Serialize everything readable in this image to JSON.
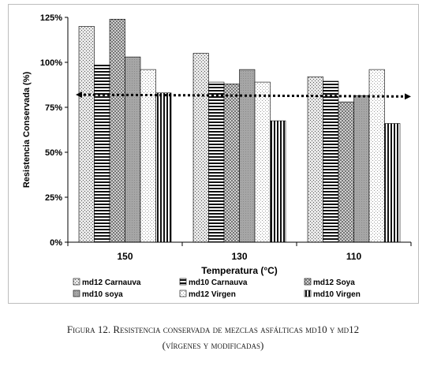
{
  "chart_data": {
    "type": "bar",
    "xlabel": "Temperatura (°C)",
    "ylabel": "Resistencia Conservada (%)",
    "ylim": [
      0,
      125
    ],
    "yticks": [
      "0%",
      "25%",
      "50%",
      "75%",
      "100%",
      "125%"
    ],
    "categories": [
      "150",
      "130",
      "110"
    ],
    "series": [
      {
        "name": "md12 Carnauva",
        "values": [
          120,
          105,
          92
        ],
        "pattern": "dots"
      },
      {
        "name": "md10 Carnauva",
        "values": [
          98.5,
          89,
          89.5
        ],
        "pattern": "hstripes"
      },
      {
        "name": "md12 Soya",
        "values": [
          124,
          88,
          78
        ],
        "pattern": "check"
      },
      {
        "name": "md10 soya",
        "values": [
          103,
          96,
          81.5
        ],
        "pattern": "grey"
      },
      {
        "name": "md12 Virgen",
        "values": [
          96,
          89,
          96
        ],
        "pattern": "lightdots"
      },
      {
        "name": "md10 Virgen",
        "values": [
          83,
          67.5,
          66
        ],
        "pattern": "vstripes"
      }
    ],
    "trendline": {
      "start": 82,
      "end": 81
    },
    "grid": false,
    "legend": "bottom"
  },
  "caption": {
    "line1_prefix": "Figura 12.",
    "line1_text": "Resistencia conservada de mezclas asfálticas md10 y md12",
    "line2": "(vírgenes y modificadas)"
  }
}
